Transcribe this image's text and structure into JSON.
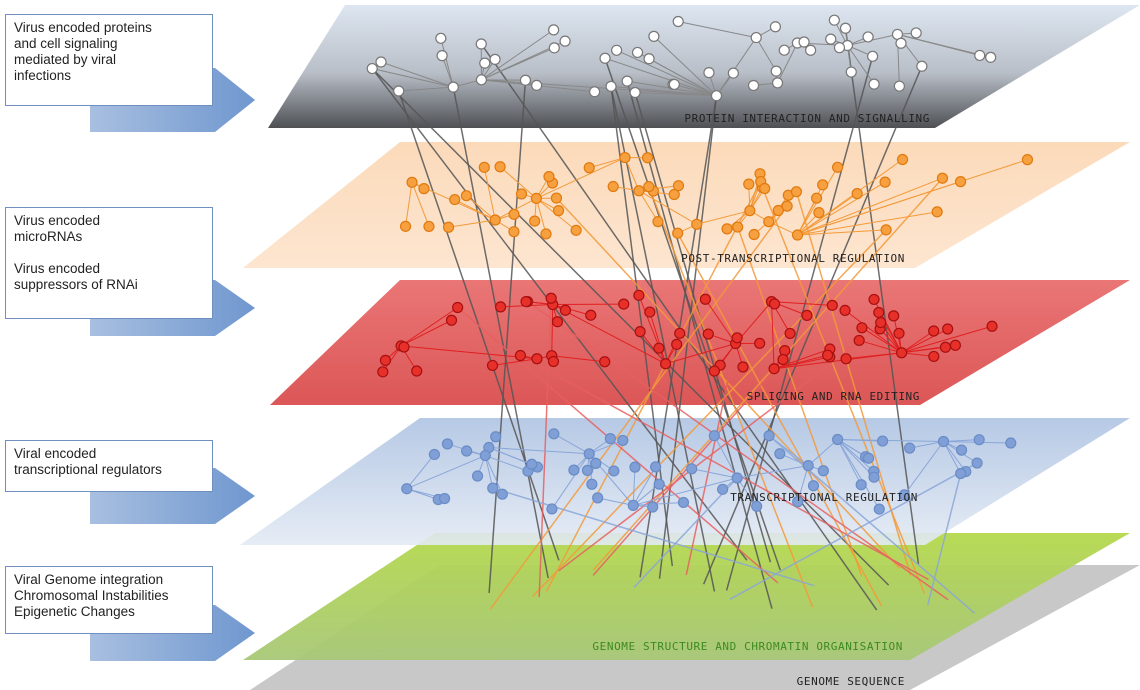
{
  "boxes": [
    {
      "paragraphs": [
        [
          "Virus encoded proteins",
          "and cell signaling",
          "mediated by viral",
          "infections"
        ]
      ]
    },
    {
      "paragraphs": [
        [
          "Virus encoded",
          "microRNAs"
        ],
        [
          "Virus encoded",
          "suppressors of RNAi"
        ]
      ]
    },
    {
      "paragraphs": [
        [
          "Viral encoded",
          "transcriptional regulators"
        ]
      ]
    },
    {
      "paragraphs": [
        [
          "Viral Genome integration",
          "Chromosomal Instabilities",
          "Epigenetic Changes"
        ]
      ]
    }
  ],
  "layers": [
    {
      "label": "PROTEIN INTERACTION AND SIGNALLING"
    },
    {
      "label": "POST-TRANSCRIPTIONAL REGULATION"
    },
    {
      "label": "SPLICING AND RNA EDITING"
    },
    {
      "label": "TRANSCRIPTIONAL REGULATION"
    },
    {
      "label": "GENOME STRUCTURE AND CHROMATIN ORGANISATION"
    },
    {
      "label": "GENOME SEQUENCE"
    }
  ]
}
